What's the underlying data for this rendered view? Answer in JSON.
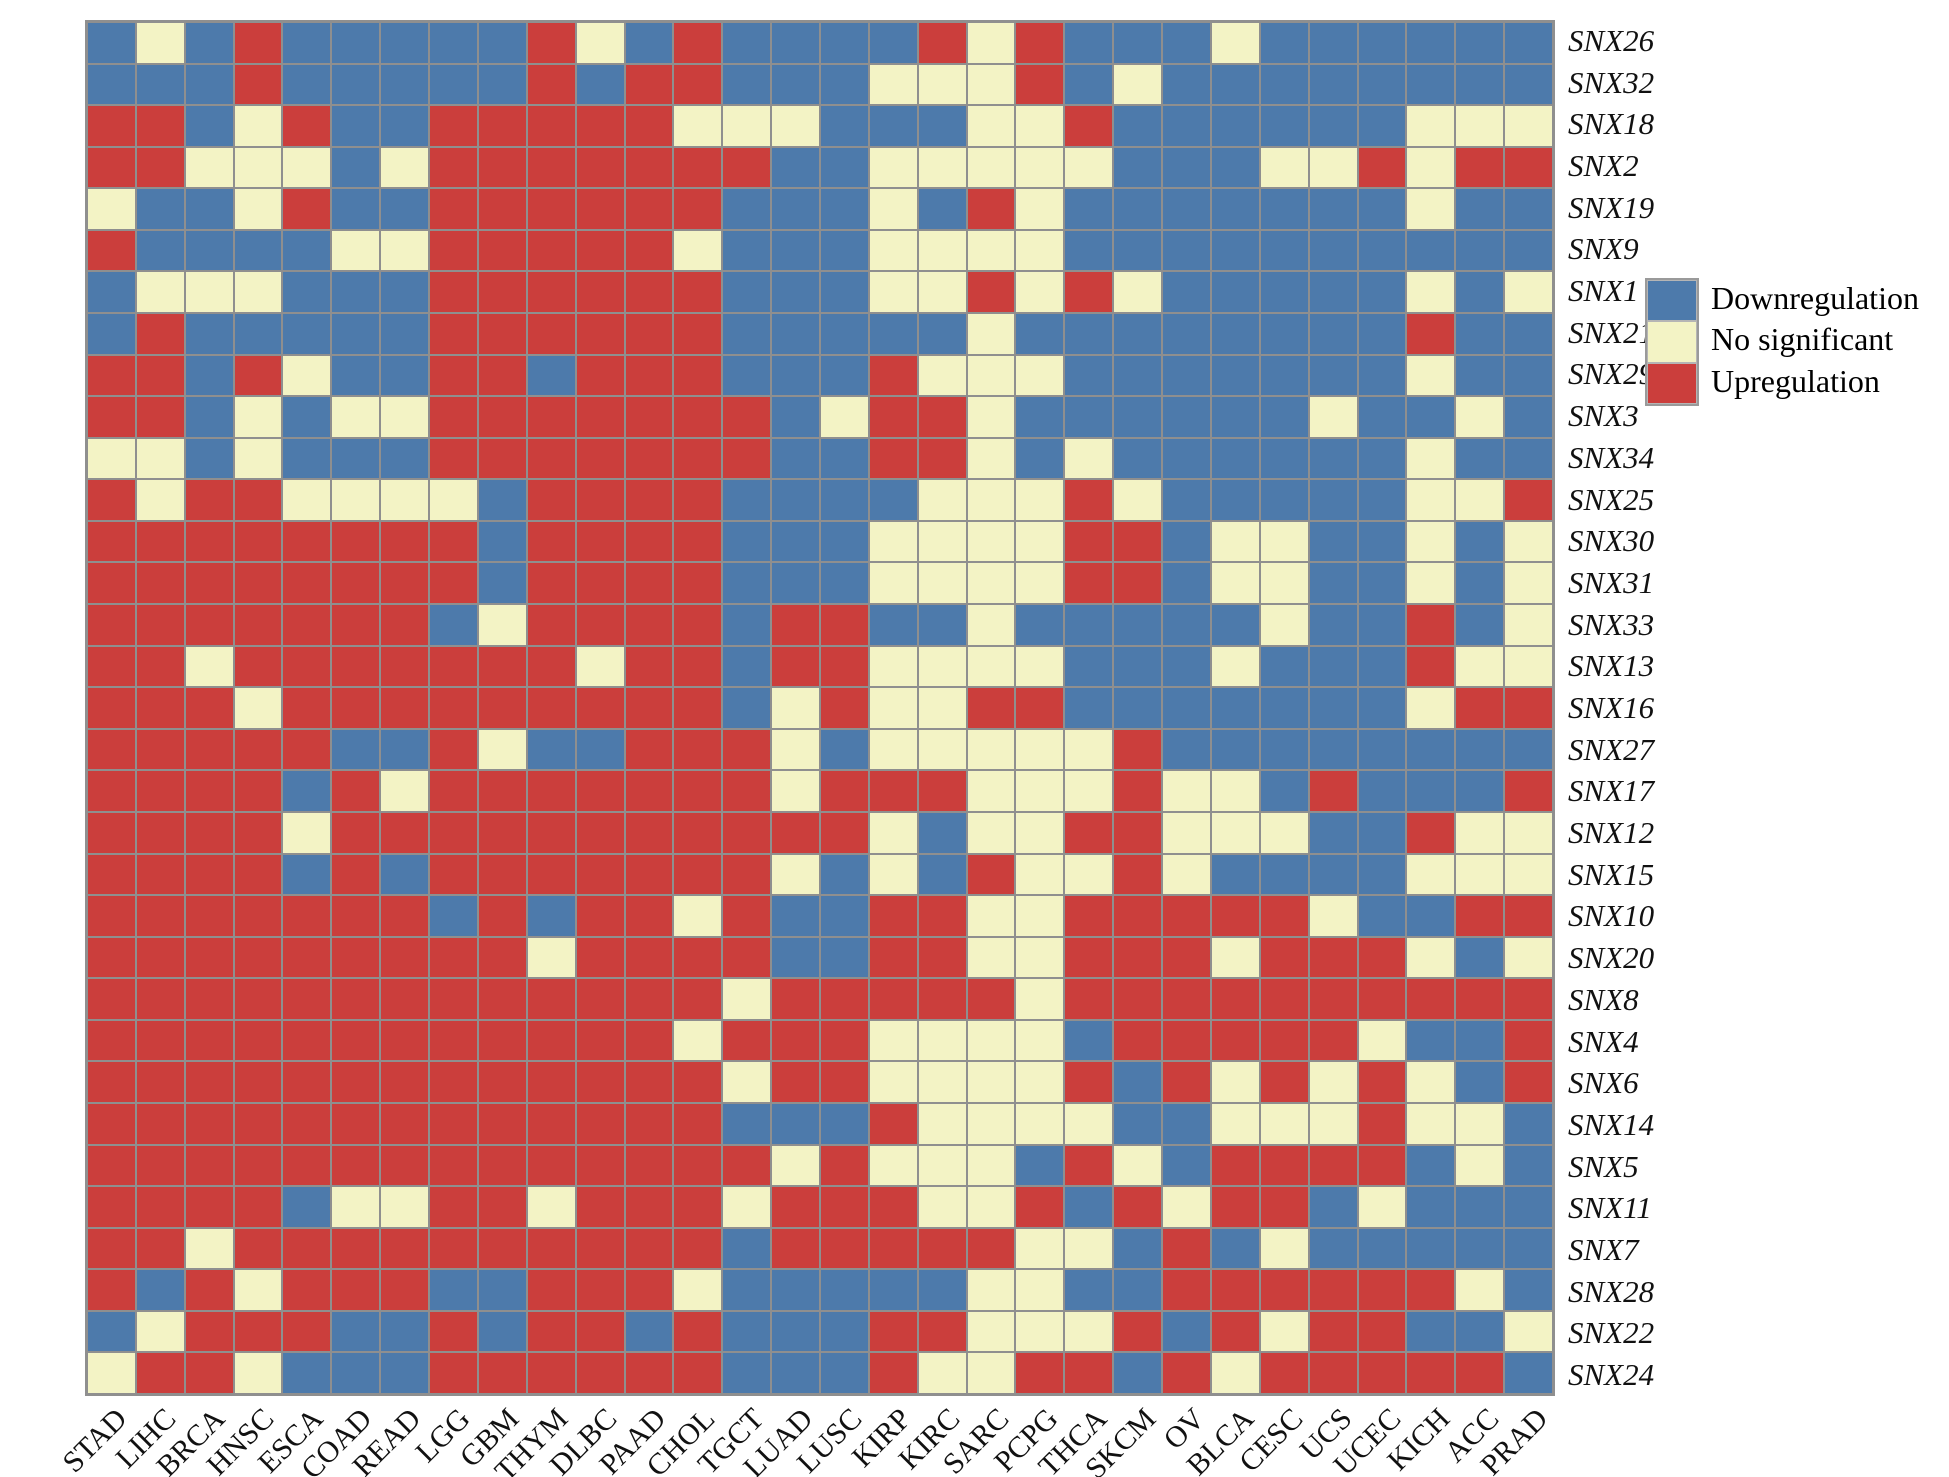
{
  "figure": {
    "background": "#ffffff"
  },
  "legend": {
    "items": [
      {
        "label": "Downregulation",
        "key": "B"
      },
      {
        "label": "No significant",
        "key": "Y"
      },
      {
        "label": "Upregulation",
        "key": "R"
      }
    ]
  },
  "chart_data": {
    "type": "heatmap",
    "title": "",
    "xlabel": "",
    "ylabel": "",
    "legend_position": "right",
    "grid": true,
    "grid_color": "#8f8f8f",
    "colors": {
      "B": "#4d7aab",
      "Y": "#f3f3c5",
      "R": "#cb3e3c"
    },
    "values_encoding": {
      "B": "Downregulation",
      "Y": "No significant",
      "R": "Upregulation"
    },
    "columns": [
      "STAD",
      "LIHC",
      "BRCA",
      "HNSC",
      "ESCA",
      "COAD",
      "READ",
      "LGG",
      "GBM",
      "THYM",
      "DLBC",
      "PAAD",
      "CHOL",
      "TGCT",
      "LUAD",
      "LUSC",
      "KIRP",
      "KIRC",
      "SARC",
      "PCPG",
      "THCA",
      "SKCM",
      "OV",
      "BLCA",
      "CESC",
      "UCS",
      "UCEC",
      "KICH",
      "ACC",
      "PRAD"
    ],
    "rows": [
      "SNX26",
      "SNX32",
      "SNX18",
      "SNX2",
      "SNX19",
      "SNX9",
      "SNX1",
      "SNX21",
      "SNX29",
      "SNX3",
      "SNX34",
      "SNX25",
      "SNX30",
      "SNX31",
      "SNX33",
      "SNX13",
      "SNX16",
      "SNX27",
      "SNX17",
      "SNX12",
      "SNX15",
      "SNX10",
      "SNX20",
      "SNX8",
      "SNX4",
      "SNX6",
      "SNX14",
      "SNX5",
      "SNX11",
      "SNX7",
      "SNX28",
      "SNX22",
      "SNX24"
    ],
    "matrix": [
      "BYBRBBBBBRYBRBBBBRYRBBBYBBBBBB",
      "BBBRBBBBBRBRRBBBYYYRBYBBBBBBBB",
      "RRBYRBBRRRRRYYYBBBYYRBBBBBBYYY",
      "RRYYYBYRRRRRRRBBYYYYYBBBYYRYRR",
      "YBBYRBBRRRRRRBBBYBRYBBBBBBBYBB",
      "RBBBBYYRRRRRYBBBYYYYBBBBBBBBBB",
      "BYYYBBBRRRRRRBBBYYRYRYBBBBBYBY",
      "BRBBBBBRRRRRRBBBBBYBBBBBBBBRBB",
      "RRBRYBBRRBRRRBBBRYYYBBBBBBBYBB",
      "RRBYBYYRRRRRRRBYRRYBBBBBBYBBYB",
      "YYBYBBBRRRRRRRBBRRYBYBBBBBBYBB",
      "RYRRYYYYBRRRRBBBBYYYRYBBBBBYYR",
      "RRRRRRRRBRRRRBBBYYYYRRBYYBBYBY",
      "RRRRRRRRBRRRRBBBYYYYRRBYYBBYBY",
      "RRRRRRRBYRRRRBRRBBYBBBBBYBBRBY",
      "RRYRRRRRRRYRRBRRYYYYBBBYBBBRYY",
      "RRRYRRRRRRRRRBYRYYRRBBBBBBBYRR",
      "RRRRRBBRYBBRRRYBYYYYYRBBBBBBBB",
      "RRRRBRYRRRRRRRYRRRYYYRYYBRBBBR",
      "RRRRYRRRRRRRRRRRYBYYRRYYYBBRYY",
      "RRRRBRBRRRRRRRYBYBRYYRYBBBBYYY",
      "RRRRRRRBRBRRYRBBRRYYRRRRRYBBRR",
      "RRRRRRRRRYRRRRBBRRYYRRRYRRRYBY",
      "RRRRRRRRRRRRRYRRRRRYRRRRRRRRRR",
      "RRRRRRRRRRRRYRRRYYYYBRRRRRYBBR",
      "RRRRRRRRRRRRRYRRYYYYRBRYRYRYBR",
      "RRRRRRRRRRRRRBBBRYYYYBBYYYRYYB",
      "RRRRRRRRRRRRRRYRYYYBRYBRRRRBYB",
      "RRRRBYYRRYRRRYRRRYYRBRYRRBYBBB",
      "RRYRRRRRRRRRRBRRRRRYYBRBYBBBBB",
      "RBRYRRRBBRRRYBBBBBYYBBRRRRRRYB",
      "BYRRRBBRBRRBRBBBRRYYYRBRYRRBBY",
      "YRRYBBBRRRRRRBBBRYYRRBRYRRRRRB"
    ]
  }
}
